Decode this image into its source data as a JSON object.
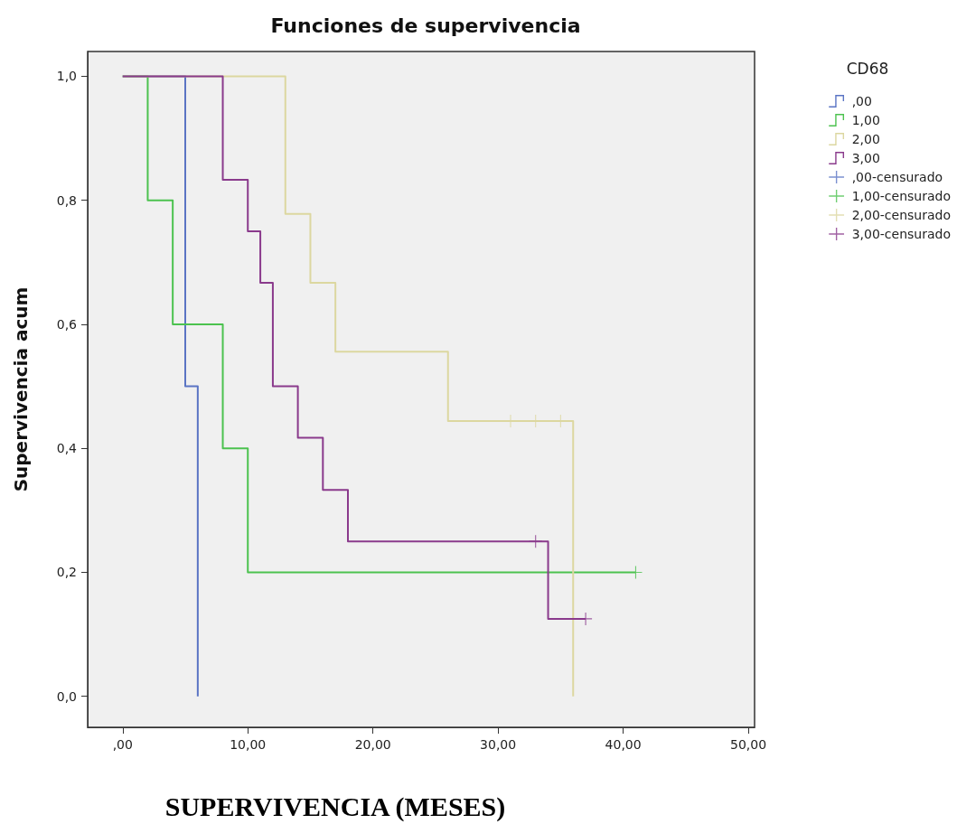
{
  "chart_data": {
    "type": "step",
    "title": "Funciones de supervivencia",
    "xlabel": "SUPERVIVENCIA (MESES)",
    "ylabel": "Supervivencia acum",
    "legend_title": "CD68",
    "series": [
      {
        "name": ",00",
        "color": "#5a74c4",
        "x": [
          0,
          5,
          6
        ],
        "values": [
          1,
          0.5,
          0
        ]
      },
      {
        "name": "1,00",
        "color": "#4cc24f",
        "x": [
          0,
          2,
          4,
          8,
          10,
          41
        ],
        "values": [
          1,
          0.8,
          0.6,
          0.4,
          0.2,
          0.2
        ]
      },
      {
        "name": "2,00",
        "color": "#dcd7a0",
        "x": [
          0,
          13,
          15,
          17,
          26,
          36
        ],
        "values": [
          1,
          0.778,
          0.667,
          0.556,
          0.444,
          0
        ]
      },
      {
        "name": "3,00",
        "color": "#8a3a8c",
        "x": [
          0,
          8,
          10,
          11,
          12,
          14,
          16,
          18,
          34,
          37
        ],
        "values": [
          1,
          0.833,
          0.75,
          0.667,
          0.5,
          0.417,
          0.333,
          0.25,
          0.125,
          0.125
        ]
      },
      {
        "name": ",00-censurado",
        "type": "scatter",
        "marker": "cross",
        "color": "#5a74c4"
      },
      {
        "name": "1,00-censurado",
        "type": "scatter",
        "marker": "cross",
        "color": "#4cc24f",
        "x": [
          41
        ],
        "values": [
          0.2
        ]
      },
      {
        "name": "2,00-censurado",
        "type": "scatter",
        "marker": "cross",
        "color": "#dcd7a0",
        "x": [
          31,
          33,
          35
        ],
        "values": [
          0.444,
          0.444,
          0.444
        ]
      },
      {
        "name": "3,00-censurado",
        "type": "scatter",
        "marker": "cross",
        "color": "#8a3a8c",
        "x": [
          33,
          37
        ],
        "values": [
          0.25,
          0.125
        ]
      }
    ],
    "marker": "none",
    "xlim": [
      -2.8,
      50.5
    ],
    "ylim": [
      -0.05,
      1.04
    ],
    "xticks": [
      {
        "value": 0,
        "label": ",00"
      },
      {
        "value": 10,
        "label": "10,00"
      },
      {
        "value": 20,
        "label": "20,00"
      },
      {
        "value": 30,
        "label": "30,00"
      },
      {
        "value": 40,
        "label": "40,00"
      },
      {
        "value": 50,
        "label": "50,00"
      }
    ],
    "yticks": [
      {
        "value": 0,
        "label": "0,0"
      },
      {
        "value": 0.2,
        "label": "0,2"
      },
      {
        "value": 0.4,
        "label": "0,4"
      },
      {
        "value": 0.6,
        "label": "0,6"
      },
      {
        "value": 0.8,
        "label": "0,8"
      },
      {
        "value": 1,
        "label": "1,0"
      }
    ],
    "grid": false,
    "legend": "right"
  }
}
